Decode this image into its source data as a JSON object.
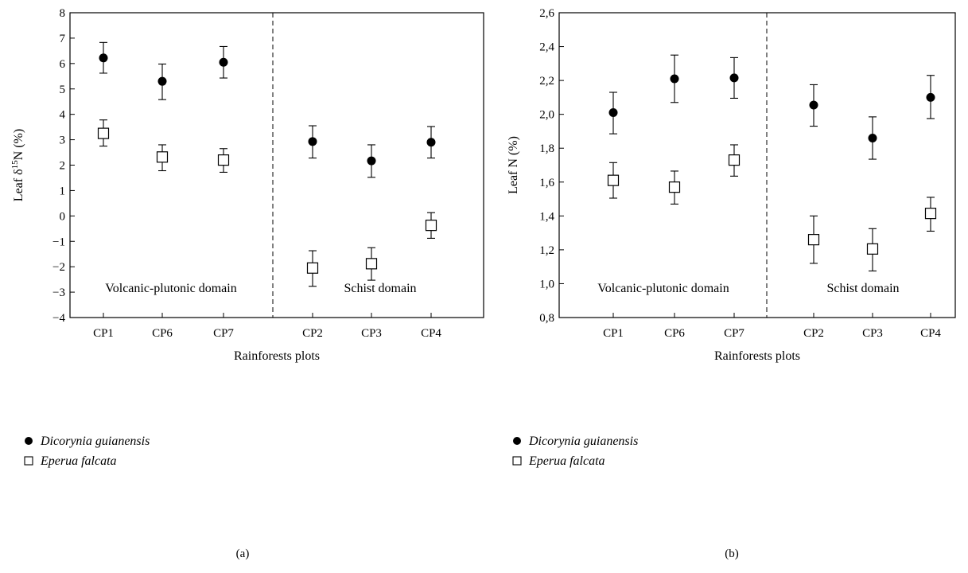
{
  "chart_data": [
    {
      "type": "scatter",
      "panel_label": "(a)",
      "xlabel": "Rainforests plots",
      "ylabel_prefix": "Leaf δ",
      "ylabel_sup": "15",
      "ylabel_suffix": "N (%)",
      "categories": [
        "CP1",
        "CP6",
        "CP7",
        "CP2",
        "CP3",
        "CP4"
      ],
      "ylim": [
        -4,
        8
      ],
      "yticks": [
        -4,
        -3,
        -2,
        -1,
        0,
        1,
        2,
        3,
        4,
        5,
        6,
        7,
        8
      ],
      "ytick_labels": [
        "−4",
        "−3",
        "−2",
        "−1",
        "0",
        "1",
        "2",
        "3",
        "4",
        "5",
        "6",
        "7",
        "8"
      ],
      "divider_after_index": 2,
      "domains": [
        "Volcanic-plutonic domain",
        "Schist domain"
      ],
      "series": [
        {
          "name": "Dicorynia guianensis",
          "marker": "filled-circle",
          "values": [
            6.22,
            5.3,
            6.05,
            2.93,
            2.17,
            2.9
          ],
          "err_low": [
            5.62,
            4.58,
            5.43,
            2.28,
            1.52,
            2.28
          ],
          "err_high": [
            6.83,
            5.98,
            6.67,
            3.55,
            2.8,
            3.52
          ]
        },
        {
          "name": "Eperua falcata",
          "marker": "open-square",
          "values": [
            3.25,
            2.32,
            2.2,
            -2.05,
            -1.88,
            -0.37
          ],
          "err_low": [
            2.75,
            1.78,
            1.72,
            -2.77,
            -2.53,
            -0.88
          ],
          "err_high": [
            3.78,
            2.8,
            2.65,
            -1.37,
            -1.25,
            0.13
          ]
        }
      ]
    },
    {
      "type": "scatter",
      "panel_label": "(b)",
      "xlabel": "Rainforests plots",
      "ylabel_prefix": "Leaf N (%)",
      "ylabel_sup": "",
      "ylabel_suffix": "",
      "categories": [
        "CP1",
        "CP6",
        "CP7",
        "CP2",
        "CP3",
        "CP4"
      ],
      "ylim": [
        0.8,
        2.6
      ],
      "yticks": [
        0.8,
        1.0,
        1.2,
        1.4,
        1.6,
        1.8,
        2.0,
        2.2,
        2.4,
        2.6
      ],
      "ytick_labels": [
        "0,8",
        "1,0",
        "1,2",
        "1,4",
        "1,6",
        "1,8",
        "2,0",
        "2,2",
        "2,4",
        "2,6"
      ],
      "divider_after_index": 2,
      "domains": [
        "Volcanic-plutonic domain",
        "Schist domain"
      ],
      "series": [
        {
          "name": "Dicorynia guianensis",
          "marker": "filled-circle",
          "values": [
            2.01,
            2.21,
            2.215,
            2.055,
            1.86,
            2.1
          ],
          "err_low": [
            1.885,
            2.07,
            2.095,
            1.93,
            1.735,
            1.975
          ],
          "err_high": [
            2.13,
            2.35,
            2.335,
            2.175,
            1.985,
            2.23
          ]
        },
        {
          "name": "Eperua falcata",
          "marker": "open-square",
          "values": [
            1.61,
            1.57,
            1.73,
            1.26,
            1.205,
            1.415
          ],
          "err_low": [
            1.505,
            1.47,
            1.635,
            1.12,
            1.075,
            1.31
          ],
          "err_high": [
            1.715,
            1.665,
            1.82,
            1.4,
            1.325,
            1.51
          ]
        }
      ]
    }
  ]
}
